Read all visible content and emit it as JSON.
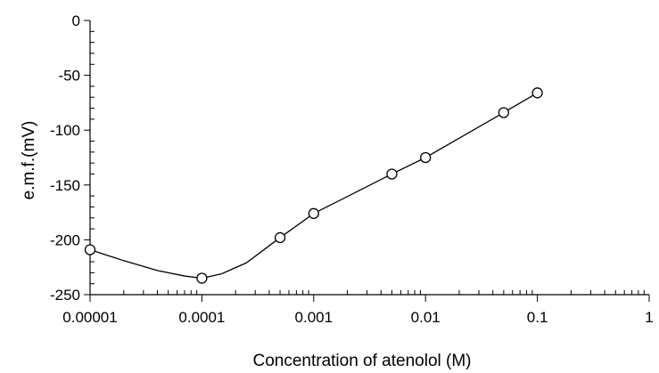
{
  "chart_data": {
    "type": "line",
    "xscale": "log",
    "xlabel": "Concentration of atenolol (M)",
    "ylabel": "e.m.f.(mV)",
    "xlim": [
      1e-05,
      1
    ],
    "ylim": [
      -250,
      0
    ],
    "x_ticks": [
      {
        "value": 1e-05,
        "label": "0.00001"
      },
      {
        "value": 0.0001,
        "label": "0.0001"
      },
      {
        "value": 0.001,
        "label": "0.001"
      },
      {
        "value": 0.01,
        "label": "0.01"
      },
      {
        "value": 0.1,
        "label": "0.1"
      },
      {
        "value": 1,
        "label": "1"
      }
    ],
    "y_ticks": [
      {
        "value": 0,
        "label": "0"
      },
      {
        "value": -50,
        "label": "-50"
      },
      {
        "value": -100,
        "label": "-100"
      },
      {
        "value": -150,
        "label": "-150"
      },
      {
        "value": -200,
        "label": "-200"
      },
      {
        "value": -250,
        "label": "-250"
      }
    ],
    "grid": false,
    "series": [
      {
        "points": [
          {
            "x": 1e-05,
            "y": -209
          },
          {
            "x": 0.0001,
            "y": -235
          },
          {
            "x": 0.0005,
            "y": -198
          },
          {
            "x": 0.001,
            "y": -176
          },
          {
            "x": 0.005,
            "y": -140
          },
          {
            "x": 0.01,
            "y": -125
          },
          {
            "x": 0.05,
            "y": -84
          },
          {
            "x": 0.1,
            "y": -66
          }
        ],
        "curve": [
          [
            1e-05,
            -209
          ],
          [
            2e-05,
            -219
          ],
          [
            4e-05,
            -228
          ],
          [
            7e-05,
            -233
          ],
          [
            0.0001,
            -235
          ],
          [
            0.00015,
            -231
          ],
          [
            0.00025,
            -221
          ],
          [
            0.0005,
            -198
          ],
          [
            0.001,
            -176
          ],
          [
            0.005,
            -140
          ],
          [
            0.01,
            -125
          ],
          [
            0.05,
            -84
          ],
          [
            0.1,
            -66
          ]
        ]
      }
    ]
  }
}
